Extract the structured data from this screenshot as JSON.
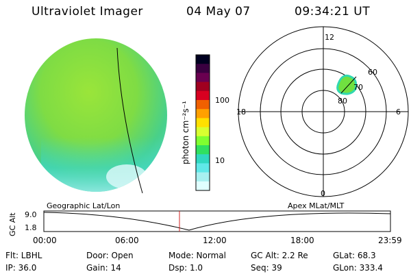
{
  "header": {
    "title": "Ultraviolet Imager",
    "date": "04 May 07",
    "time": "09:34:21 UT"
  },
  "colorbar": {
    "unit_label": "photon cm⁻²s⁻¹",
    "ticks": [
      "100",
      "10"
    ],
    "colors": [
      "#000020",
      "#3a0040",
      "#6a0050",
      "#a00020",
      "#d80020",
      "#f06000",
      "#ffa000",
      "#ffe000",
      "#d8ff30",
      "#80ff30",
      "#30e060",
      "#30d8c0",
      "#60e8e8",
      "#a8f0f0",
      "#e0ffff"
    ]
  },
  "polar": {
    "mlt_labels": {
      "top": "12",
      "bottom": "0",
      "left": "18",
      "right": "6"
    },
    "lat_labels": [
      "60",
      "70",
      "80"
    ]
  },
  "timeline": {
    "left_panel_label": "Geographic Lat/Lon",
    "right_panel_label": "Apex MLat/MLT",
    "axis_title": "GC Alt",
    "y_ticks": [
      "9.0",
      "1.8"
    ],
    "x_ticks": [
      "00:00",
      "06:00",
      "12:00",
      "18:00",
      "23:59"
    ]
  },
  "info": {
    "flt": "Flt: LBHL",
    "ip": "IP: 36.0",
    "door": "Door: Open",
    "gain": "Gain: 14",
    "mode": "Mode: Normal",
    "dsp": "Dsp:    1.0",
    "gc_alt": "GC Alt: 2.2 Re",
    "seq": "Seq: 39",
    "glat": "GLat:  68.3",
    "glon": "GLon: 333.4"
  }
}
